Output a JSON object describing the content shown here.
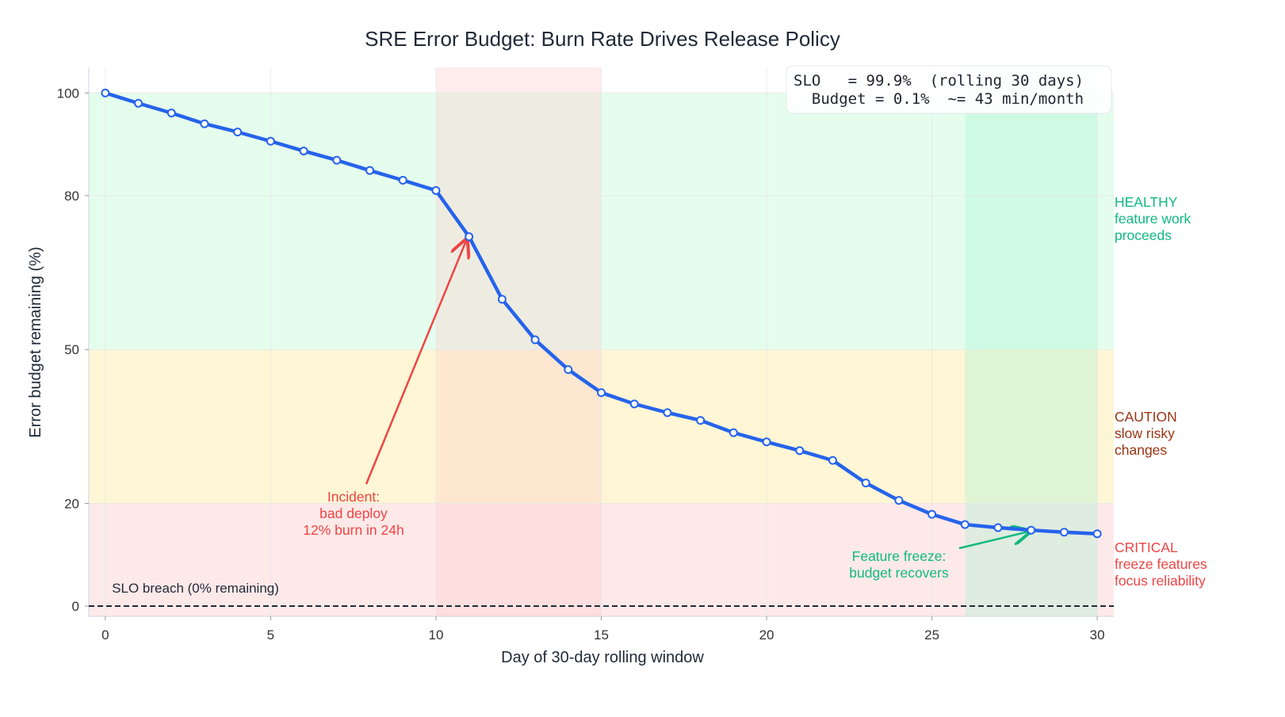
{
  "chart_data": {
    "type": "line",
    "title": "SRE Error Budget: Burn Rate Drives Release Policy",
    "xlabel": "Day of 30-day rolling window",
    "ylabel": "Error budget remaining (%)",
    "xlim": [
      -0.5,
      30.5
    ],
    "ylim": [
      -2,
      105
    ],
    "xticks": [
      0,
      5,
      10,
      15,
      20,
      25,
      30
    ],
    "yticks": [
      0,
      20,
      50,
      80,
      100
    ],
    "grid": true,
    "x": [
      0,
      1,
      2,
      3,
      4,
      5,
      6,
      7,
      8,
      9,
      10,
      11,
      12,
      13,
      14,
      15,
      16,
      17,
      18,
      19,
      20,
      21,
      22,
      23,
      24,
      25,
      26,
      27,
      28,
      29,
      30
    ],
    "y": [
      100,
      98.0,
      96.1,
      94.0,
      92.4,
      90.6,
      88.7,
      86.9,
      84.9,
      83.0,
      81.0,
      72.0,
      59.8,
      51.9,
      46.1,
      41.6,
      39.4,
      37.7,
      36.2,
      33.8,
      32.0,
      30.3,
      28.4,
      24.0,
      20.6,
      17.9,
      15.9,
      15.3,
      14.8,
      14.4,
      14.1
    ],
    "line_color": "#2563eb",
    "zones": [
      {
        "from": 50,
        "to": 100,
        "color": "#dcfce7",
        "label": [
          "HEALTHY",
          "feature work",
          "proceeds"
        ],
        "label_color": "#10b981"
      },
      {
        "from": 20,
        "to": 50,
        "color": "#fef3c7",
        "label": [
          "CAUTION",
          "slow risky",
          "changes"
        ],
        "label_color": "#9a3412"
      },
      {
        "from": -2,
        "to": 20,
        "color": "#fee2e2",
        "label": [
          "CRITICAL",
          "freeze features",
          "focus reliability"
        ],
        "label_color": "#ef4444"
      }
    ],
    "spans": [
      {
        "from": 10,
        "to": 15,
        "color": "#fecaca"
      },
      {
        "from": 26,
        "to": 30,
        "color": "#a7f3d0"
      }
    ],
    "breach_line": {
      "y": 0,
      "label": "SLO breach (0% remaining)"
    },
    "annotations": [
      {
        "lines": [
          "Incident:",
          "bad deploy",
          "12% burn in 24h"
        ],
        "color": "#ef4444",
        "target": [
          11,
          72.0
        ],
        "text_at": [
          7.5,
          20
        ]
      },
      {
        "lines": [
          "Feature freeze:",
          "budget recovers"
        ],
        "color": "#10b981",
        "target": [
          28,
          14.8
        ],
        "text_at": [
          24,
          8
        ]
      }
    ],
    "info_box": [
      "SLO   = 99.9%  (rolling 30 days)",
      "  Budget = 0.1%  ~= 43 min/month"
    ]
  }
}
